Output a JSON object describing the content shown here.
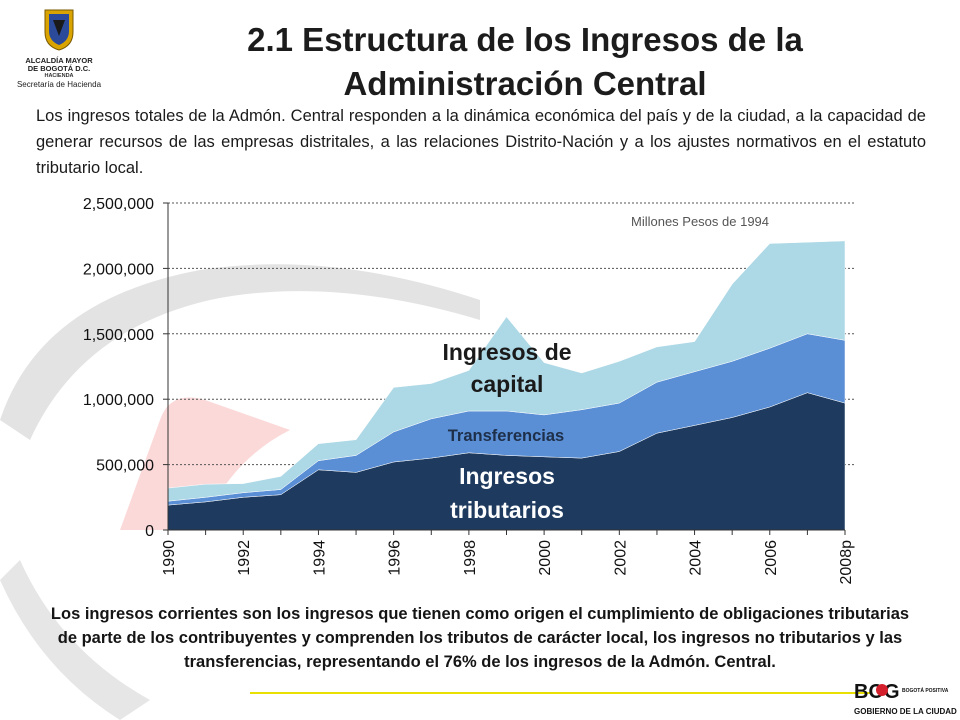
{
  "header": {
    "logo_line1": "ALCALDÍA MAYOR",
    "logo_line2": "DE BOGOTÁ D.C.",
    "logo_line3": "HACIENDA",
    "logo_line4": "Secretaría de Hacienda",
    "title": "2.1  Estructura de los Ingresos de la Administración Central"
  },
  "intro": "Los ingresos totales de la Admón. Central responden a la dinámica económica del país y de la ciudad, a la capacidad de generar recursos de las empresas distritales, a las relaciones Distrito-Nación y a los ajustes normativos en el estatuto tributario local.",
  "chart_data": {
    "type": "area",
    "stacked": true,
    "annotation": "Millones Pesos de 1994",
    "x": [
      "1990",
      "1991",
      "1992",
      "1993",
      "1994",
      "1995",
      "1996",
      "1997",
      "1998",
      "1999",
      "2000",
      "2001",
      "2002",
      "2003",
      "2004",
      "2005",
      "2006",
      "2007",
      "2008p"
    ],
    "x_tick_labels": [
      "1990",
      "1992",
      "1994",
      "1996",
      "1998",
      "2000",
      "2002",
      "2004",
      "2006",
      "2008p"
    ],
    "ylim": [
      0,
      2500000
    ],
    "y_ticks": [
      0,
      500000,
      1000000,
      1500000,
      2000000,
      2500000
    ],
    "y_tick_labels": [
      "0",
      "500,000",
      "1,000,000",
      "1,500,000",
      "2,000,000",
      "2,500,000"
    ],
    "grid": true,
    "series": [
      {
        "name": "Ingresos tributarios",
        "label_line1": "Ingresos",
        "label_line2": "tributarios",
        "color": "#1e3a5f",
        "values": [
          190000,
          215000,
          250000,
          270000,
          460000,
          440000,
          520000,
          550000,
          590000,
          570000,
          560000,
          550000,
          600000,
          740000,
          800000,
          860000,
          940000,
          1050000,
          970000
        ]
      },
      {
        "name": "Transferencias",
        "label_line1": "Transferencias",
        "color": "#5a8fd6",
        "values": [
          30000,
          35000,
          35000,
          40000,
          70000,
          130000,
          230000,
          300000,
          320000,
          340000,
          320000,
          370000,
          370000,
          390000,
          410000,
          430000,
          450000,
          450000,
          480000
        ]
      },
      {
        "name": "Ingresos de capital",
        "label_line1": "Ingresos de",
        "label_line2": "capital",
        "color": "#add8e6",
        "values": [
          100000,
          100000,
          70000,
          100000,
          130000,
          120000,
          340000,
          270000,
          310000,
          720000,
          400000,
          280000,
          320000,
          270000,
          230000,
          590000,
          800000,
          700000,
          760000
        ]
      }
    ]
  },
  "footer": {
    "text": "Los ingresos corrientes son los ingresos que tienen como origen el cumplimiento de obligaciones tributarias de parte de los contribuyentes  y comprenden los tributos de carácter local, los ingresos no tributarios y las transferencias, representando el 76% de los ingresos de la Admón. Central.",
    "brand_top": "BOG",
    "brand_side": "BOGOTÁ POSITIVA",
    "brand_bottom": "GOBIERNO DE LA CIUDAD"
  },
  "colors": {
    "accent_line": "#e8e000",
    "brand_red": "#d4202c"
  }
}
